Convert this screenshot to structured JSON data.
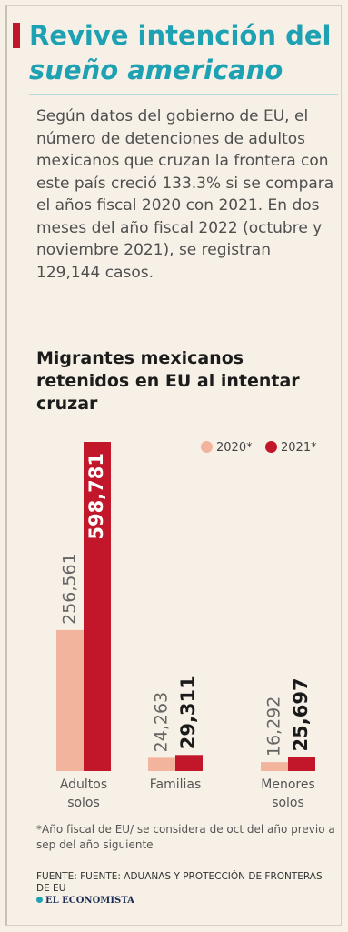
{
  "header": {
    "title_line1": "Revive intención del",
    "title_line2": "sueño americano",
    "intro": "Según datos del gobierno de EU, el número de detenciones de adultos mexicanos que cruzan la frontera con este país creció 133.3% si se compara el años fiscal 2020 con 2021. En dos meses del año fiscal 2022 (octubre y noviembre 2021), se registran 129,144 casos."
  },
  "chart_data": {
    "type": "bar",
    "title": "Migrantes mexicanos retenidos en EU al intentar cruzar",
    "categories": [
      "Adultos solos",
      "Familias",
      "Menores solos"
    ],
    "series": [
      {
        "name": "2020*",
        "color": "#f2b49c",
        "values": [
          256561,
          24263,
          16292
        ],
        "labels": [
          "256,561",
          "24,263",
          "16,292"
        ]
      },
      {
        "name": "2021*",
        "color": "#c2172b",
        "values": [
          598781,
          29311,
          25697
        ],
        "labels": [
          "598,781",
          "29,311",
          "25,697"
        ]
      }
    ],
    "xlabel": "",
    "ylabel": "",
    "ylim": [
      0,
      598781
    ],
    "grid": false,
    "legend": "top-right"
  },
  "footer": {
    "note": "*Año fiscal de EU/ se considera de oct del año previo a sep del año siguiente",
    "source": "FUENTE: FUENTE: ADUANAS Y PROTECCIÓN DE FRONTERAS DE EU",
    "brand": "EL ECONOMISTA"
  }
}
